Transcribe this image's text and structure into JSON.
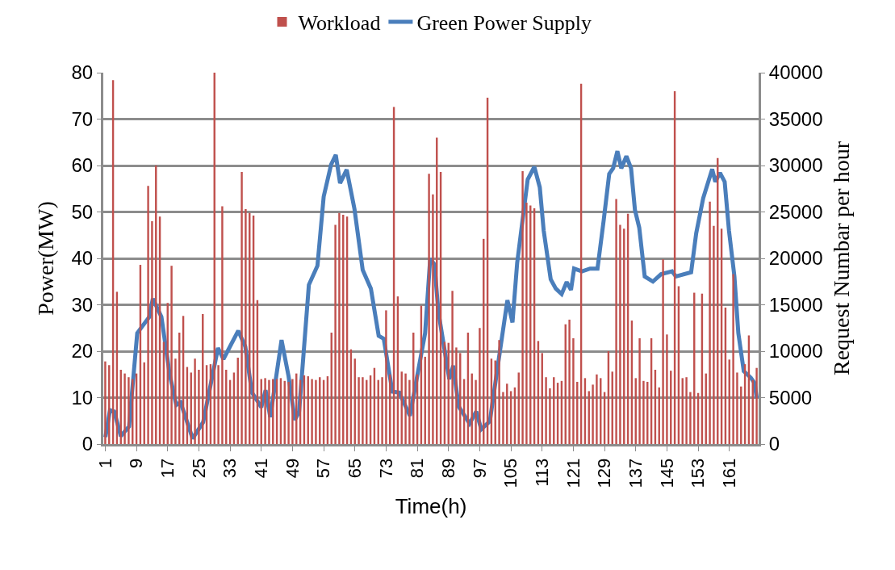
{
  "chart_data": {
    "type": "bar",
    "xlabel": "Time(h)",
    "ylabel": "Power(MW)",
    "y2label": "Request Numbar per hour",
    "x": [
      1,
      2,
      3,
      4,
      5,
      6,
      7,
      8,
      9,
      10,
      11,
      12,
      13,
      14,
      15,
      16,
      17,
      18,
      19,
      20,
      21,
      22,
      23,
      24,
      25,
      26,
      27,
      28,
      29,
      30,
      31,
      32,
      33,
      34,
      35,
      36,
      37,
      38,
      39,
      40,
      41,
      42,
      43,
      44,
      45,
      46,
      47,
      48,
      49,
      50,
      51,
      52,
      53,
      54,
      55,
      56,
      57,
      58,
      59,
      60,
      61,
      62,
      63,
      64,
      65,
      66,
      67,
      68,
      69,
      70,
      71,
      72,
      73,
      74,
      75,
      76,
      77,
      78,
      79,
      80,
      81,
      82,
      83,
      84,
      85,
      86,
      87,
      88,
      89,
      90,
      91,
      92,
      93,
      94,
      95,
      96,
      97,
      98,
      99,
      100,
      101,
      102,
      103,
      104,
      105,
      106,
      107,
      108,
      109,
      110,
      111,
      112,
      113,
      114,
      115,
      116,
      117,
      118,
      119,
      120,
      121,
      122,
      123,
      124,
      125,
      126,
      127,
      128,
      129,
      130,
      131,
      132,
      133,
      134,
      135,
      136,
      137,
      138,
      139,
      140,
      141,
      142,
      143,
      144,
      145,
      146,
      147,
      148,
      149,
      150,
      151,
      152,
      153,
      154,
      155,
      156,
      157,
      158,
      159,
      160,
      161,
      162,
      163,
      164,
      165,
      166,
      167,
      168
    ],
    "xlim": [
      0.5,
      168.5
    ],
    "xticks": [
      1,
      9,
      17,
      25,
      33,
      41,
      49,
      57,
      65,
      73,
      81,
      89,
      97,
      105,
      113,
      121,
      129,
      137,
      145,
      153,
      161
    ],
    "ylim": [
      0,
      80
    ],
    "yticks": [
      0,
      10,
      20,
      30,
      40,
      50,
      60,
      70,
      80
    ],
    "y2lim": [
      0,
      40000
    ],
    "y2ticks": [
      0,
      5000,
      10000,
      15000,
      20000,
      25000,
      30000,
      35000,
      40000
    ],
    "grid": "y",
    "legend": "top",
    "series": [
      {
        "name": "Workload",
        "axis": "y2",
        "color": "#c0504d",
        "values": [
          8900,
          8500,
          39200,
          16400,
          8000,
          7600,
          7200,
          7000,
          7600,
          19300,
          8800,
          27800,
          24000,
          30000,
          24500,
          11000,
          15200,
          19200,
          9200,
          12000,
          13800,
          8300,
          7700,
          9200,
          8000,
          14000,
          8500,
          8600,
          40000,
          8500,
          25600,
          8000,
          6900,
          7700,
          9300,
          29300,
          25300,
          24900,
          24600,
          15500,
          7000,
          7100,
          6900,
          7000,
          7000,
          7100,
          6800,
          6700,
          7000,
          7600,
          6900,
          7400,
          7300,
          7000,
          6900,
          7200,
          6900,
          7300,
          12000,
          23600,
          24900,
          24700,
          24500,
          10200,
          9200,
          7200,
          7200,
          6900,
          7400,
          8200,
          6900,
          7200,
          14400,
          7500,
          36300,
          15900,
          7800,
          7600,
          6900,
          12000,
          7500,
          14900,
          9400,
          29100,
          26900,
          33000,
          29300,
          11000,
          10900,
          16500,
          10400,
          9800,
          7000,
          12000,
          7600,
          6900,
          12500,
          22100,
          37300,
          9200,
          9000,
          11200,
          5600,
          6500,
          5700,
          6100,
          7700,
          29400,
          26000,
          25700,
          25400,
          11100,
          9800,
          7200,
          6000,
          7200,
          6600,
          6800,
          12900,
          13400,
          11400,
          6700,
          38800,
          7100,
          5700,
          6400,
          7500,
          7100,
          5600,
          10000,
          7800,
          26400,
          23600,
          23200,
          24800,
          13300,
          7100,
          11400,
          6800,
          6700,
          11400,
          8000,
          6100,
          19900,
          11800,
          7900,
          38000,
          17000,
          7100,
          7200,
          5600,
          16300,
          5500,
          16200,
          7600,
          26100,
          23500,
          30800,
          23200,
          14700,
          9100,
          18300,
          7700,
          6200,
          8600,
          11700,
          6900,
          8200
        ]
      },
      {
        "name": "Green Power Supply",
        "type": "line",
        "color": "#4a7ebb",
        "marker": "none",
        "x": [
          1.05,
          2.2,
          3.3,
          5.0,
          7.1,
          9.2,
          12.3,
          13.2,
          15.4,
          17.5,
          19.2,
          20.3,
          23.4,
          26.1,
          29.9,
          31.3,
          35.1,
          36.9,
          38.6,
          40.0,
          41.0,
          42.1,
          43.3,
          46.2,
          48.0,
          49.6,
          50.7,
          53.2,
          55.4,
          57.0,
          58.9,
          60.1,
          61.2,
          62.9,
          64.9,
          67.0,
          69.1,
          71.1,
          72.4,
          74.6,
          76.4,
          79.1,
          83.0,
          84.3,
          85.4,
          86.4,
          89.2,
          90.2,
          91.6,
          94.4,
          96.1,
          97.4,
          99.6,
          101.7,
          104.1,
          105.4,
          106.6,
          109.3,
          111.0,
          112.4,
          113.4,
          115.2,
          116.5,
          118.0,
          119.3,
          120.4,
          121.2,
          123.2,
          125.3,
          127.2,
          128.8,
          130.2,
          131.2,
          132.3,
          133.3,
          134.6,
          135.8,
          136.8,
          137.9,
          139.3,
          141.4,
          143.5,
          146.3,
          147.3,
          151.2,
          152.5,
          154.3,
          156.6,
          157.4,
          158.6,
          159.8,
          160.9,
          162.3,
          163.3,
          164.7,
          166.5,
          167.5,
          168
        ],
        "values": [
          1.5,
          7.3,
          7.0,
          1.7,
          3.8,
          23.9,
          27.4,
          31.3,
          27.4,
          15.1,
          8.4,
          9.0,
          1.2,
          4.7,
          20.7,
          18.3,
          24.4,
          21.0,
          11.1,
          9.3,
          7.9,
          11.6,
          5.8,
          22.4,
          14.6,
          5.2,
          7.0,
          34.3,
          38.4,
          53.3,
          60.2,
          62.3,
          56.2,
          59.1,
          50.6,
          37.5,
          33.5,
          23.3,
          22.7,
          11.3,
          11.1,
          6.1,
          23.9,
          39.9,
          38.7,
          28.5,
          14.0,
          16.9,
          8.1,
          4.4,
          7.0,
          3.2,
          4.9,
          17.2,
          31.0,
          26.2,
          39.0,
          57.0,
          59.7,
          55.3,
          46.0,
          35.5,
          33.5,
          32.3,
          34.9,
          33.2,
          37.8,
          37.2,
          37.8,
          37.8,
          48.3,
          58.2,
          59.4,
          63.1,
          59.4,
          62.0,
          59.4,
          50.4,
          46.6,
          36.1,
          35.0,
          36.6,
          37.2,
          36.1,
          37.0,
          45.4,
          53.0,
          59.2,
          56.5,
          58.4,
          56.5,
          46.0,
          36.1,
          23.9,
          15.7,
          14.3,
          13.1,
          9.9
        ]
      }
    ]
  }
}
